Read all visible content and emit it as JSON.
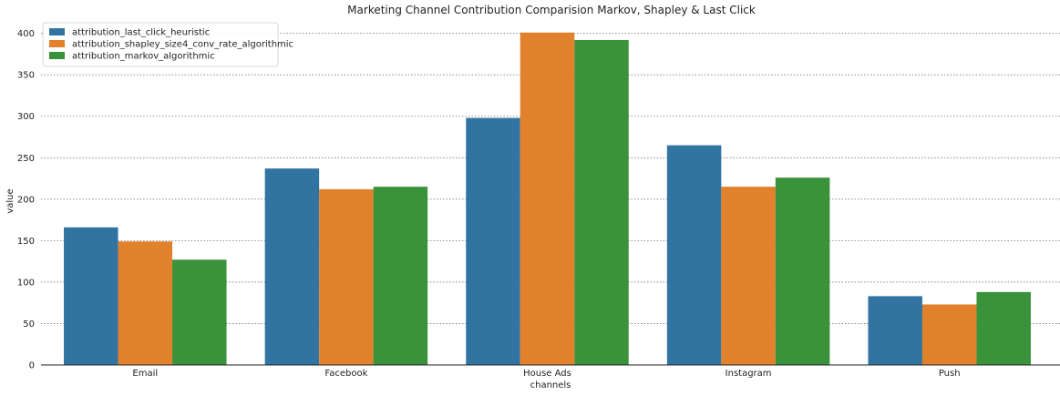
{
  "chart_data": {
    "type": "bar",
    "title": "Marketing Channel Contribution Comparision Markov, Shapley & Last Click",
    "xlabel": "channels",
    "ylabel": "value",
    "categories": [
      "Email",
      "Facebook",
      "House Ads",
      "Instagram",
      "Push"
    ],
    "series": [
      {
        "name": "attribution_last_click_heuristic",
        "color": "#3274a1",
        "values": [
          166,
          237,
          298,
          265,
          83
        ]
      },
      {
        "name": "attribution_shapley_size4_conv_rate_algorithmic",
        "color": "#e1812c",
        "values": [
          149,
          212,
          401,
          215,
          73
        ]
      },
      {
        "name": "attribution_markov_algorithmic",
        "color": "#3a923a",
        "values": [
          127,
          215,
          392,
          226,
          88
        ]
      }
    ],
    "ylim": [
      0,
      415
    ],
    "yticks": [
      0,
      50,
      100,
      150,
      200,
      250,
      300,
      350,
      400
    ],
    "grid": "y",
    "legend_position": "top-left"
  }
}
